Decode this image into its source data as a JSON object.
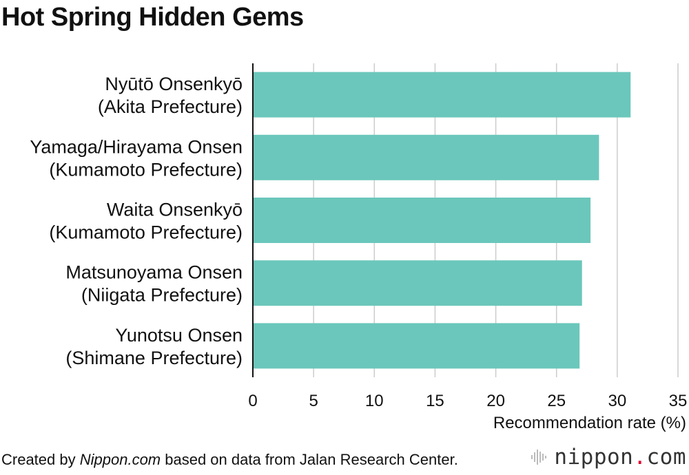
{
  "chart_data": {
    "type": "bar",
    "orientation": "horizontal",
    "title": "Hot Spring Hidden Gems",
    "categories": [
      [
        "Nyūtō Onsenkyō",
        "(Akita Prefecture)"
      ],
      [
        "Yamaga/Hirayama Onsen",
        "(Kumamoto Prefecture)"
      ],
      [
        "Waita Onsenkyō",
        "(Kumamoto Prefecture)"
      ],
      [
        "Matsunoyama Onsen",
        "(Niigata Prefecture)"
      ],
      [
        "Yunotsu Onsen",
        "(Shimane Prefecture)"
      ]
    ],
    "values": [
      31.1,
      28.5,
      27.8,
      27.1,
      26.9
    ],
    "xlabel": "Recommendation rate (%)",
    "xlim": [
      0,
      35
    ],
    "xticks": [
      0,
      5,
      10,
      15,
      20,
      25,
      30,
      35
    ],
    "grid": true,
    "bar_color": "#6bc7bb",
    "grid_color": "#cccccc"
  },
  "footer": {
    "prefix": "Created by ",
    "brand": "Nippon.com",
    "suffix": " based on data from Jalan Research Center."
  },
  "logo": {
    "name": "nippon",
    "dot": ".",
    "tld": "com",
    "icon": "sound-wave-icon",
    "accent": "#e4002b"
  }
}
